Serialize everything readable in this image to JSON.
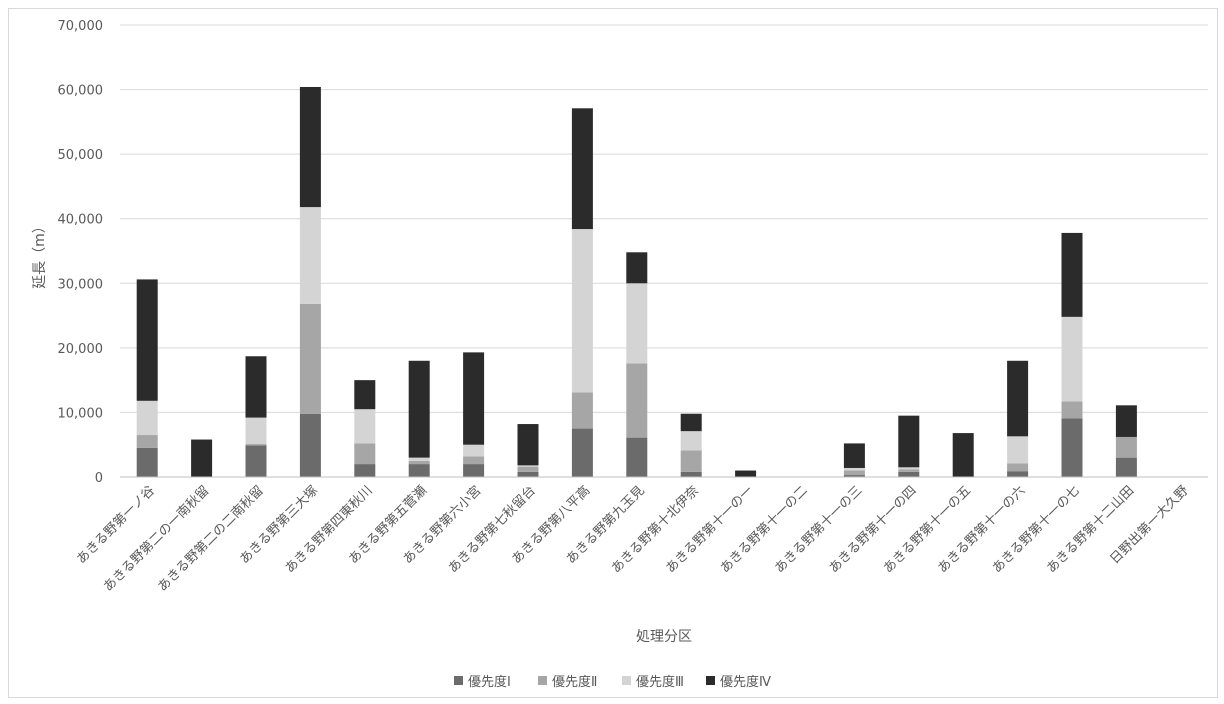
{
  "chart_data": {
    "type": "bar",
    "stacked": true,
    "title": "",
    "xlabel": "処理分区",
    "ylabel": "延長（m）",
    "ylim": [
      0,
      70000
    ],
    "yticks": [
      0,
      10000,
      20000,
      30000,
      40000,
      50000,
      60000,
      70000
    ],
    "ytick_labels": [
      "0",
      "10,000",
      "20,000",
      "30,000",
      "40,000",
      "50,000",
      "60,000",
      "70,000"
    ],
    "grid": true,
    "legend_position": "bottom",
    "categories": [
      "あきる野第一ノ谷",
      "あきる野第二の一南秋留",
      "あきる野第二の二南秋留",
      "あきる野第三大塚",
      "あきる野第四東秋川",
      "あきる野第五菅瀬",
      "あきる野第六小宮",
      "あきる野第七秋留台",
      "あきる野第八平高",
      "あきる野第九玉見",
      "あきる野第十北伊奈",
      "あきる野第十一の一",
      "あきる野第十一の二",
      "あきる野第十一の三",
      "あきる野第十一の四",
      "あきる野第十一の五",
      "あきる野第十一の六",
      "あきる野第十一の七",
      "あきる野第十二山田",
      "日野出第一大久野"
    ],
    "series": [
      {
        "name": "優先度Ⅰ",
        "color": "#6b6b6b",
        "values": [
          4500,
          0,
          4900,
          9800,
          2000,
          2000,
          2000,
          800,
          7500,
          6100,
          800,
          0,
          0,
          300,
          800,
          0,
          900,
          9100,
          3000,
          0
        ]
      },
      {
        "name": "優先度Ⅱ",
        "color": "#a6a6a6",
        "values": [
          2000,
          0,
          200,
          17000,
          3200,
          500,
          1200,
          800,
          5600,
          11500,
          3300,
          0,
          0,
          700,
          400,
          0,
          1200,
          2600,
          3200,
          0
        ]
      },
      {
        "name": "優先度Ⅲ",
        "color": "#d4d4d4",
        "values": [
          5300,
          0,
          4100,
          15000,
          5300,
          500,
          1800,
          200,
          25300,
          12400,
          3000,
          0,
          0,
          400,
          300,
          0,
          4200,
          13100,
          0,
          0
        ]
      },
      {
        "name": "優先度Ⅳ",
        "color": "#2b2b2b",
        "values": [
          18800,
          5800,
          9500,
          18600,
          4500,
          15000,
          14300,
          6400,
          18700,
          4800,
          2700,
          1000,
          0,
          3800,
          8000,
          6800,
          11700,
          13000,
          4900,
          0
        ]
      }
    ]
  }
}
